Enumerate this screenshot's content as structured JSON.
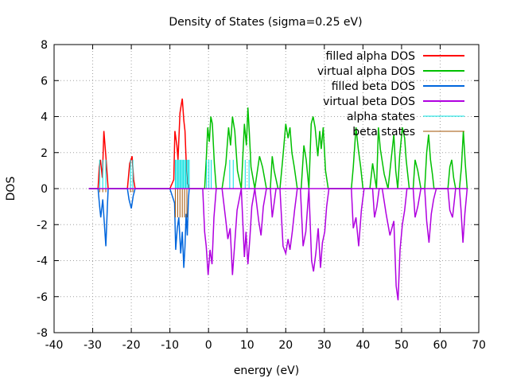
{
  "chart_data": {
    "type": "line",
    "title": "Density of States (sigma=0.25 eV)",
    "xlabel": "energy (eV)",
    "ylabel": "DOS",
    "xlim": [
      -40,
      70
    ],
    "ylim": [
      -8,
      8
    ],
    "xticks": [
      -40,
      -30,
      -20,
      -10,
      0,
      10,
      20,
      30,
      40,
      50,
      60,
      70
    ],
    "yticks": [
      -8,
      -6,
      -4,
      -2,
      0,
      2,
      4,
      6,
      8
    ],
    "grid": true,
    "legend_position": "top-right",
    "series": [
      {
        "name": "filled alpha DOS",
        "color": "#ff0000",
        "x": [
          -31,
          -28.6,
          -28.3,
          -28,
          -27.5,
          -27.1,
          -26.6,
          -26.2,
          -26,
          -21,
          -20.4,
          -19.8,
          -19.4,
          -19,
          -10,
          -9,
          -8.7,
          -8.2,
          -7.9,
          -7.4,
          -7.1,
          -6.8,
          -6.4,
          -6.1,
          -5.8,
          -5.5,
          -5
        ],
        "y": [
          0,
          0,
          1.2,
          1.6,
          0.6,
          3.2,
          1.8,
          0.6,
          0,
          0,
          1.4,
          1.8,
          0.5,
          0,
          0,
          0.5,
          3.2,
          2.4,
          1.6,
          4.2,
          4.6,
          5.0,
          3.8,
          3.2,
          1.6,
          0.4,
          0
        ]
      },
      {
        "name": "virtual alpha DOS",
        "color": "#00c000",
        "x": [
          -5,
          -1,
          -0.6,
          -0.2,
          0.2,
          0.6,
          1.0,
          1.5,
          2,
          3.5,
          4.5,
          5.2,
          5.7,
          6.2,
          6.8,
          7.5,
          8.5,
          9.3,
          9.8,
          10.2,
          10.6,
          11,
          12,
          13.2,
          14.0,
          15,
          16,
          16.5,
          17,
          18,
          18.5,
          19.2,
          20.0,
          20.6,
          21.1,
          21.6,
          22.2,
          23,
          24,
          24.7,
          25.3,
          26,
          26.6,
          27.1,
          27.6,
          28.3,
          28.8,
          29.2,
          29.7,
          30.3,
          31,
          33,
          36,
          37,
          37.5,
          38.2,
          38.8,
          39.4,
          40,
          41.8,
          42.5,
          43.5,
          44.0,
          44.5,
          45.5,
          46.5,
          47.2,
          48.0,
          48.5,
          49,
          49.5,
          50.2,
          50.8,
          51.2,
          52,
          53,
          53.5,
          54.2,
          55,
          56,
          56.5,
          57,
          57.5,
          58,
          58.4,
          62,
          62.5,
          63.0,
          63.5,
          64,
          65,
          65.5,
          66,
          66.5,
          67
        ],
        "y": [
          0,
          0,
          1.6,
          3.4,
          2.6,
          4.0,
          3.6,
          1.4,
          0,
          0,
          1.4,
          3.4,
          2.4,
          4.0,
          3.2,
          1.0,
          0,
          3.6,
          2.4,
          4.5,
          3.0,
          1.2,
          0,
          1.8,
          1.2,
          0,
          0,
          1.8,
          1.0,
          0,
          0,
          1.6,
          3.6,
          2.8,
          3.4,
          2.0,
          1.2,
          0,
          0,
          2.4,
          1.6,
          0,
          3.6,
          4.0,
          3.4,
          1.8,
          3.2,
          2.2,
          3.4,
          1.0,
          0,
          0,
          0,
          0,
          1.2,
          3.4,
          2.2,
          1.2,
          0,
          0,
          1.4,
          0,
          3.4,
          2.2,
          0.8,
          0,
          1.4,
          3.0,
          1.0,
          0,
          1.8,
          3.4,
          2.8,
          1.6,
          0,
          0,
          1.6,
          1.0,
          0,
          0,
          2.0,
          3.0,
          1.6,
          0.8,
          0,
          0,
          1.2,
          1.6,
          0.6,
          0,
          0,
          1.2,
          3.2,
          1.4,
          0
        ]
      },
      {
        "name": "filled beta DOS",
        "color": "#0066dd",
        "x": [
          -31,
          -28.6,
          -28.2,
          -27.9,
          -27.4,
          -26.9,
          -26.6,
          -26.2,
          -26,
          -21,
          -20.6,
          -20,
          -19.5,
          -19,
          -10,
          -8.8,
          -8.5,
          -8.1,
          -7.7,
          -7.2,
          -6.8,
          -6.4,
          -6.1,
          -5.8,
          -5.5,
          -5.2,
          -5
        ],
        "y": [
          0,
          0,
          -1.0,
          -1.6,
          -0.6,
          -2.2,
          -3.2,
          -1.0,
          0,
          0,
          -0.6,
          -1.1,
          -0.4,
          0,
          0,
          -0.8,
          -3.4,
          -2.2,
          -1.6,
          -3.6,
          -2.4,
          -4.4,
          -3.2,
          -1.4,
          -2.6,
          -0.6,
          0
        ]
      },
      {
        "name": "virtual beta DOS",
        "color": "#b000e0",
        "x": [
          -5,
          -1.5,
          -1.0,
          -0.6,
          -0.1,
          0.4,
          0.9,
          1.4,
          2,
          3.5,
          4.5,
          5,
          5.6,
          6.2,
          6.8,
          7.4,
          8.5,
          9.3,
          9.7,
          10.2,
          10.7,
          11.2,
          12,
          13,
          13.6,
          14.2,
          15,
          16,
          16.5,
          17.5,
          18.5,
          19.3,
          20,
          20.6,
          21.1,
          21.7,
          22.3,
          23,
          23.8,
          24.5,
          25.2,
          26,
          26.7,
          27.2,
          27.8,
          28.4,
          29.0,
          29.5,
          30.1,
          30.6,
          31.2,
          32,
          36,
          37,
          37.5,
          38.2,
          38.9,
          39.6,
          40.3,
          41,
          42.5,
          43,
          43.6,
          44.2,
          45,
          46,
          47,
          48.0,
          48.6,
          49.1,
          49.6,
          50.2,
          50.8,
          51.4,
          52,
          53,
          53.5,
          54.2,
          55,
          56,
          56.5,
          57.1,
          57.7,
          58.3,
          59,
          62,
          62.5,
          63.2,
          64,
          65,
          65.4,
          65.9,
          66.4,
          67
        ],
        "y": [
          0,
          0,
          -2.4,
          -3.2,
          -4.8,
          -3.4,
          -4.2,
          -1.6,
          0,
          0,
          -1.8,
          -2.8,
          -2.2,
          -4.8,
          -3.0,
          -1.2,
          0,
          -3.8,
          -2.4,
          -4.2,
          -2.8,
          -1.0,
          0,
          -1.8,
          -2.6,
          -1.0,
          0,
          0,
          -1.6,
          0,
          0,
          -3.2,
          -3.6,
          -2.8,
          -3.4,
          -2.4,
          -1.2,
          0,
          0,
          -3.2,
          -2.4,
          0,
          -4.0,
          -4.6,
          -3.6,
          -2.2,
          -4.4,
          -3.0,
          -2.4,
          -1.0,
          0,
          0,
          0,
          0,
          -2.2,
          -1.6,
          -3.2,
          -1.2,
          0,
          0,
          0,
          -1.6,
          -1.0,
          0,
          0,
          -1.4,
          -2.6,
          -1.8,
          -5.4,
          -6.2,
          -3.4,
          -2.0,
          -1.2,
          0,
          0,
          0,
          -1.6,
          -1.0,
          0,
          0,
          -1.8,
          -3.0,
          -1.4,
          -0.6,
          0,
          0,
          -1.2,
          -1.6,
          0,
          0,
          -1.2,
          -3.0,
          -1.4,
          0
        ]
      },
      {
        "name": "alpha states",
        "color": "#00e0e0",
        "x": [
          -28.2,
          -27.4,
          -26.6,
          -20.2,
          -19.6,
          -8.6,
          -8.3,
          -8.0,
          -7.7,
          -7.4,
          -7.1,
          -6.8,
          -6.5,
          -6.2,
          -5.9,
          -5.6,
          -5.3,
          -5.0,
          -0.5,
          0.1,
          0.7,
          5.5,
          6.4,
          9.5,
          10.5
        ],
        "y": [
          1.6,
          1.6,
          1.6,
          1.6,
          1.6,
          1.6,
          1.6,
          1.6,
          1.6,
          1.6,
          1.6,
          1.6,
          1.6,
          1.6,
          1.6,
          1.6,
          1.6,
          1.6,
          1.6,
          1.6,
          1.6,
          1.6,
          1.6,
          1.6,
          1.6
        ]
      },
      {
        "name": "beta states",
        "color": "#a05000",
        "x": [
          -28.2,
          -27.4,
          -26.6,
          -20.2,
          -19.6,
          -8.6,
          -8.0,
          -7.4,
          -6.8,
          -6.2,
          -5.6
        ],
        "y": [
          -0.2,
          -0.2,
          -0.2,
          -0.2,
          -0.2,
          -1.6,
          -1.6,
          -1.6,
          -1.6,
          -1.6,
          -1.6
        ]
      }
    ]
  }
}
